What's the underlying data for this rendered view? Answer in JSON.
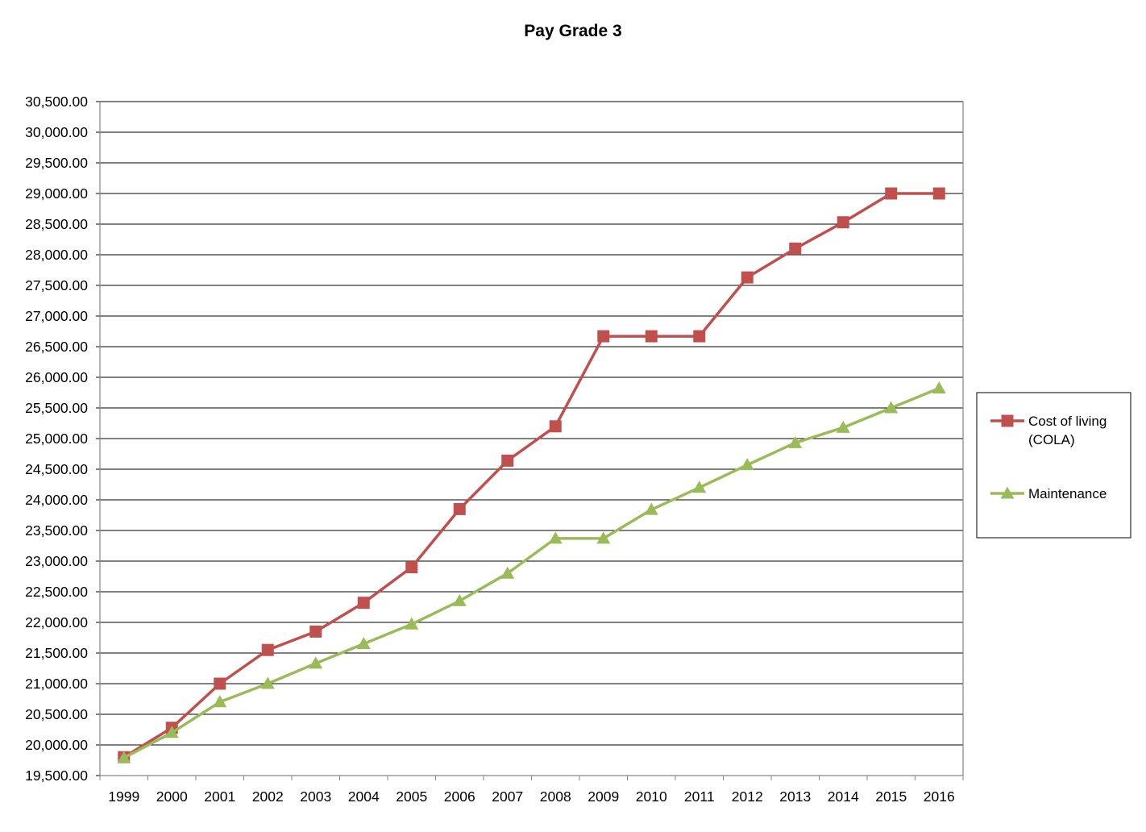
{
  "chart_data": {
    "type": "line",
    "title": "Pay Grade 3",
    "xlabel": "",
    "ylabel": "",
    "categories": [
      "1999",
      "2000",
      "2001",
      "2002",
      "2003",
      "2004",
      "2005",
      "2006",
      "2007",
      "2008",
      "2009",
      "2010",
      "2011",
      "2012",
      "2013",
      "2014",
      "2015",
      "2016"
    ],
    "ylim": [
      19500,
      30500
    ],
    "ytick_step": 500,
    "ytick_labels": [
      "19,500.00",
      "20,000.00",
      "20,500.00",
      "21,000.00",
      "21,500.00",
      "22,000.00",
      "22,500.00",
      "23,000.00",
      "23,500.00",
      "24,000.00",
      "24,500.00",
      "25,000.00",
      "25,500.00",
      "26,000.00",
      "26,500.00",
      "27,000.00",
      "27,500.00",
      "28,000.00",
      "28,500.00",
      "29,000.00",
      "29,500.00",
      "30,000.00",
      "30,500.00"
    ],
    "grid": true,
    "legend_position": "right",
    "series": [
      {
        "name_lines": [
          "Cost of living",
          "(COLA)"
        ],
        "color": "#C0504D",
        "marker": "square",
        "values": [
          19800,
          20280,
          21000,
          21550,
          21850,
          22320,
          22900,
          23850,
          24640,
          25200,
          26670,
          26670,
          26670,
          27630,
          28100,
          28530,
          29000,
          29000
        ]
      },
      {
        "name_lines": [
          "Maintenance"
        ],
        "color": "#9BBB59",
        "marker": "triangle",
        "values": [
          19790,
          20200,
          20700,
          21000,
          21330,
          21650,
          21970,
          22350,
          22800,
          23370,
          23370,
          23840,
          24200,
          24570,
          24930,
          25180,
          25500,
          25820
        ]
      }
    ]
  }
}
